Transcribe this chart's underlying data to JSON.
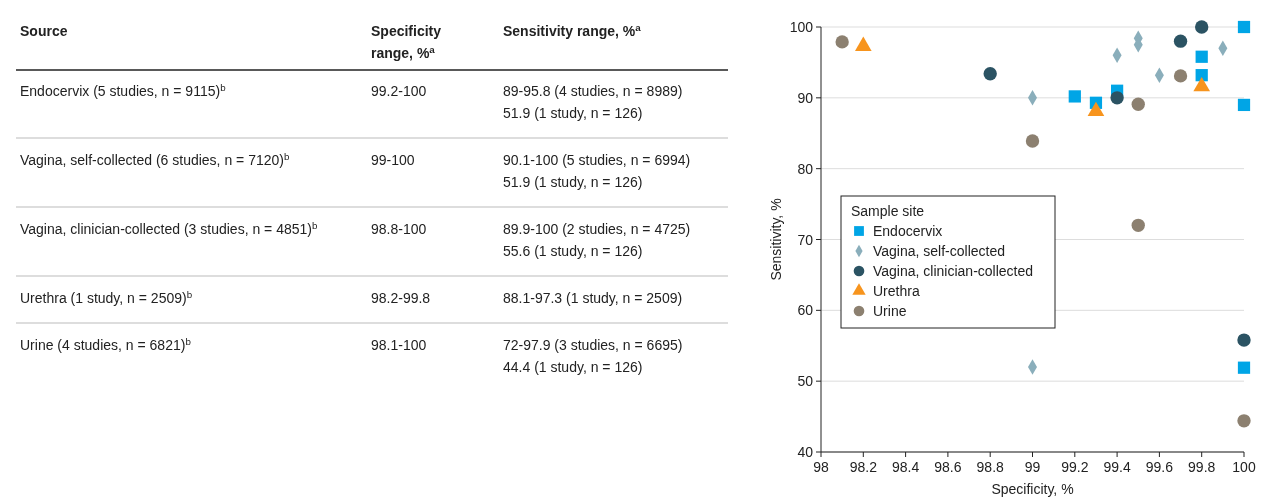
{
  "chart_data": [
    {
      "type": "other",
      "annotations": [
        "Source",
        "Specificity\nrange, %$^{a}$",
        "Sensitivity range, %$^{a}$",
        "Endocervix (5 studies, n = 9115)$^{b}$",
        "99.2-100",
        "89-95.8 (4 studies, n = 8989)\n51.9 (1 study, n = 126)",
        "Vagina, self-collected (6 studies, n = 7120)$^{b}$",
        "99-100",
        "90.1-100 (5 studies, n = 6994)\n51.9 (1 study, n = 126)",
        "Vagina, clinician-collected (3 studies, n = 4851)$^{b}$",
        "98.8-100",
        "89.9-100 (2 studies, n = 4725)\n55.6 (1 study, n = 126)",
        "Urethra (1 study, n = 2509)$^{b}$",
        "98.2-99.8",
        "88.1-97.3 (1 study, n = 2509)",
        "Urine (4 studies, n = 6821)$^{b}$",
        "98.1-100",
        "72-97.9 (3 studies, n = 6695)\n44.4 (1 study, n = 126)"
      ]
    },
    {
      "type": "scatter",
      "xlabel": "Specificity, %",
      "ylabel": "Sensitivity, %",
      "xlim": [
        98,
        100
      ],
      "ylim": [
        40,
        100
      ],
      "xticks": [
        98,
        98.2,
        98.4,
        98.6,
        98.8,
        99,
        99.2,
        99.4,
        99.6,
        99.8,
        100
      ],
      "yticks": [
        40,
        50,
        60,
        70,
        80,
        90,
        100
      ],
      "grid": "y",
      "legend": "left",
      "legend_title": "Sample site",
      "series": [
        {
          "name": "Endocervix",
          "color": "#00a5e6",
          "marker": "square",
          "x": [
            99.2,
            99.3,
            99.4,
            99.8,
            99.8,
            100,
            100,
            100
          ],
          "values": [
            90.2,
            89.3,
            91,
            95.8,
            93.2,
            100,
            89,
            51.9
          ]
        },
        {
          "name": "Vagina, self-collected",
          "color": "#8aaebb",
          "marker": "diamond",
          "x": [
            99,
            99.4,
            99.5,
            99.5,
            99.6,
            99.9,
            99
          ],
          "values": [
            90,
            96,
            98.4,
            97.5,
            93.2,
            97,
            52
          ]
        },
        {
          "name": "Vagina, clinician-collected",
          "color": "#2b5363",
          "marker": "circle",
          "x": [
            98.8,
            99.4,
            99.7,
            99.8,
            100
          ],
          "values": [
            93.4,
            90,
            98,
            100,
            55.8
          ]
        },
        {
          "name": "Urethra",
          "color": "#f7941d",
          "marker": "triangle",
          "x": [
            98.2,
            99.3,
            99.8
          ],
          "values": [
            97.3,
            88.1,
            91.6
          ]
        },
        {
          "name": "Urine",
          "color": "#8c8070",
          "marker": "circle",
          "x": [
            98.1,
            99,
            99.5,
            99.7,
            99.5,
            100
          ],
          "values": [
            97.9,
            83.9,
            89.1,
            93.1,
            72,
            44.4
          ]
        }
      ]
    }
  ]
}
